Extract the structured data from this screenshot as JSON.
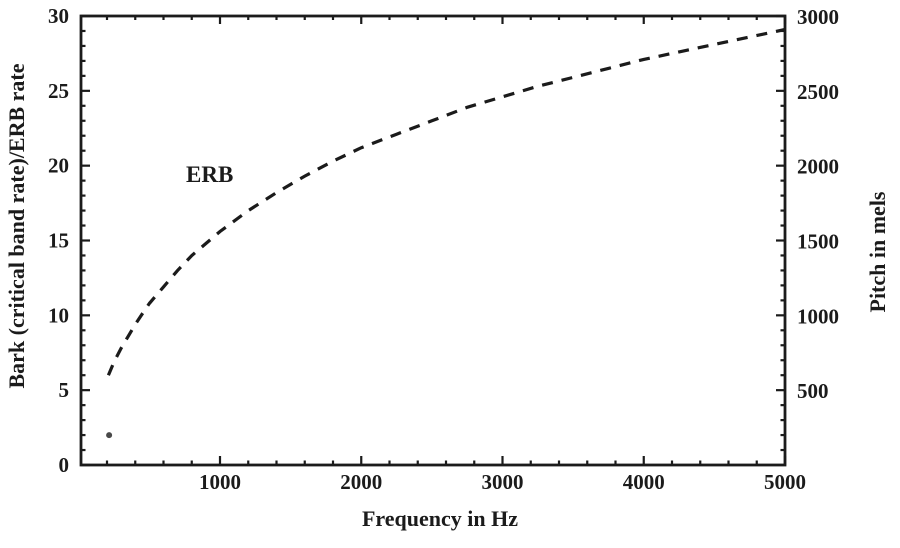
{
  "figure": {
    "background_color": "#ffffff",
    "ink_color": "#1b1b1b"
  },
  "chart_data": {
    "type": "line",
    "title": "",
    "xlabel": "Frequency in Hz",
    "ylabel_left": "Bark (critical band rate)/ERB rate",
    "ylabel_right": "Pitch in mels",
    "xlim": [
      0,
      5000
    ],
    "ylim_left": [
      0,
      30
    ],
    "ylim_right": [
      0,
      3000
    ],
    "grid": false,
    "legend_position": "none",
    "x_major_ticks": [
      1000,
      2000,
      3000,
      4000,
      5000
    ],
    "x_minor_step_hz": 200,
    "y_left_major_ticks": [
      0,
      5,
      10,
      15,
      20,
      25,
      30
    ],
    "y_left_minor_step": 1,
    "y_right_major_ticks": [
      500,
      1000,
      1500,
      2000,
      2500,
      3000
    ],
    "y_right_minor_step": 100,
    "series": [
      {
        "name": "ERB",
        "axis": "left",
        "line_style": "dashed",
        "color": "#1b1b1b",
        "points": [
          [
            210,
            6.0
          ],
          [
            250,
            6.9
          ],
          [
            300,
            7.8
          ],
          [
            350,
            8.6
          ],
          [
            400,
            9.4
          ],
          [
            450,
            10.1
          ],
          [
            500,
            10.8
          ],
          [
            600,
            11.9
          ],
          [
            700,
            13.0
          ],
          [
            800,
            14.0
          ],
          [
            900,
            14.8
          ],
          [
            1000,
            15.6
          ],
          [
            1200,
            17.0
          ],
          [
            1400,
            18.2
          ],
          [
            1600,
            19.3
          ],
          [
            1800,
            20.3
          ],
          [
            2000,
            21.2
          ],
          [
            2250,
            22.1
          ],
          [
            2500,
            23.0
          ],
          [
            2750,
            23.9
          ],
          [
            3000,
            24.6
          ],
          [
            3250,
            25.3
          ],
          [
            3500,
            25.9
          ],
          [
            3750,
            26.5
          ],
          [
            4000,
            27.1
          ],
          [
            4250,
            27.6
          ],
          [
            4500,
            28.1
          ],
          [
            4750,
            28.6
          ],
          [
            5000,
            29.1
          ]
        ]
      }
    ],
    "annotations": [
      {
        "text": "ERB",
        "x_hz": 1210,
        "y_value": 19.4
      }
    ],
    "extra_marks": [
      {
        "shape": "dot",
        "x_hz": 215,
        "y_value": 2.0
      }
    ]
  }
}
